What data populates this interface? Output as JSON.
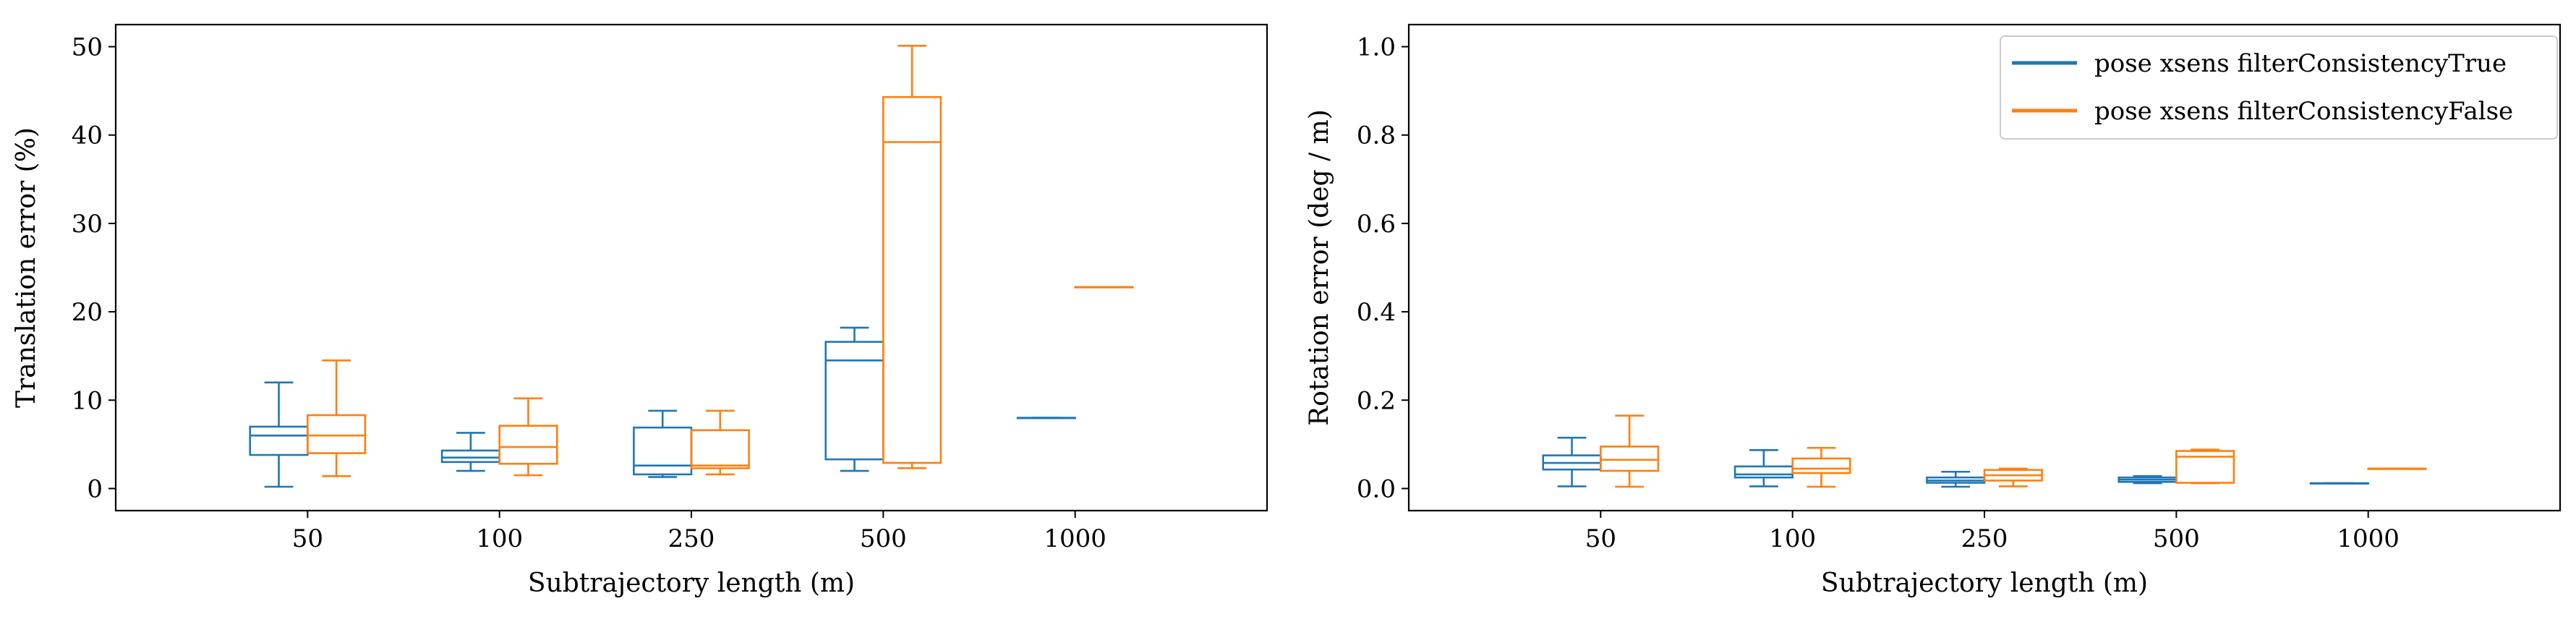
{
  "colors": {
    "series_0": "#1f77b4",
    "series_1": "#ff7f0e"
  },
  "legend": {
    "items": [
      {
        "label": "pose xsens filterConsistencyTrue"
      },
      {
        "label": "pose xsens filterConsistencyFalse"
      }
    ]
  },
  "chart_data": [
    {
      "type": "box",
      "xlabel": "Subtrajectory length (m)",
      "ylabel": "Translation error (%)",
      "ylim": [
        -2.5,
        52.5
      ],
      "yticks": [
        0,
        10,
        20,
        30,
        40,
        50
      ],
      "categories": [
        "50",
        "100",
        "250",
        "500",
        "1000"
      ],
      "grid": false,
      "series": [
        {
          "name": "pose xsens filterConsistencyTrue",
          "boxes": [
            {
              "whislo": 0.2,
              "q1": 3.8,
              "med": 6.0,
              "q3": 7.0,
              "whishi": 12.0
            },
            {
              "whislo": 2.0,
              "q1": 3.0,
              "med": 3.5,
              "q3": 4.3,
              "whishi": 6.3
            },
            {
              "whislo": 1.3,
              "q1": 1.6,
              "med": 2.6,
              "q3": 6.9,
              "whishi": 8.8
            },
            {
              "whislo": 2.0,
              "q1": 3.3,
              "med": 14.5,
              "q3": 16.6,
              "whishi": 18.2
            },
            {
              "whislo": 8.0,
              "q1": 8.0,
              "med": 8.0,
              "q3": 8.0,
              "whishi": 8.0
            }
          ]
        },
        {
          "name": "pose xsens filterConsistencyFalse",
          "boxes": [
            {
              "whislo": 1.4,
              "q1": 4.0,
              "med": 6.0,
              "q3": 8.3,
              "whishi": 14.5
            },
            {
              "whislo": 1.5,
              "q1": 2.8,
              "med": 4.7,
              "q3": 7.1,
              "whishi": 10.2
            },
            {
              "whislo": 1.6,
              "q1": 2.3,
              "med": 2.6,
              "q3": 6.6,
              "whishi": 8.8
            },
            {
              "whislo": 2.3,
              "q1": 2.9,
              "med": 39.2,
              "q3": 44.3,
              "whishi": 50.1
            },
            {
              "whislo": 22.8,
              "q1": 22.8,
              "med": 22.8,
              "q3": 22.8,
              "whishi": 22.8
            }
          ]
        }
      ]
    },
    {
      "type": "box",
      "xlabel": "Subtrajectory length (m)",
      "ylabel": "Rotation error (deg / m)",
      "ylim": [
        -0.05,
        1.05
      ],
      "yticks": [
        "0.0",
        "0.2",
        "0.4",
        "0.6",
        "0.8",
        "1.0"
      ],
      "categories": [
        "50",
        "100",
        "250",
        "500",
        "1000"
      ],
      "grid": false,
      "legend_position": "top-right",
      "series": [
        {
          "name": "pose xsens filterConsistencyTrue",
          "boxes": [
            {
              "whislo": 0.005,
              "q1": 0.043,
              "med": 0.058,
              "q3": 0.075,
              "whishi": 0.115
            },
            {
              "whislo": 0.005,
              "q1": 0.025,
              "med": 0.032,
              "q3": 0.05,
              "whishi": 0.087
            },
            {
              "whislo": 0.004,
              "q1": 0.013,
              "med": 0.018,
              "q3": 0.025,
              "whishi": 0.038
            },
            {
              "whislo": 0.012,
              "q1": 0.015,
              "med": 0.02,
              "q3": 0.025,
              "whishi": 0.028
            },
            {
              "whislo": 0.012,
              "q1": 0.012,
              "med": 0.012,
              "q3": 0.012,
              "whishi": 0.012
            }
          ]
        },
        {
          "name": "pose xsens filterConsistencyFalse",
          "boxes": [
            {
              "whislo": 0.004,
              "q1": 0.04,
              "med": 0.065,
              "q3": 0.095,
              "whishi": 0.165
            },
            {
              "whislo": 0.004,
              "q1": 0.035,
              "med": 0.045,
              "q3": 0.068,
              "whishi": 0.092
            },
            {
              "whislo": 0.005,
              "q1": 0.018,
              "med": 0.03,
              "q3": 0.042,
              "whishi": 0.045
            },
            {
              "whislo": 0.012,
              "q1": 0.013,
              "med": 0.072,
              "q3": 0.085,
              "whishi": 0.088
            },
            {
              "whislo": 0.045,
              "q1": 0.045,
              "med": 0.045,
              "q3": 0.045,
              "whishi": 0.045
            }
          ]
        }
      ]
    }
  ]
}
